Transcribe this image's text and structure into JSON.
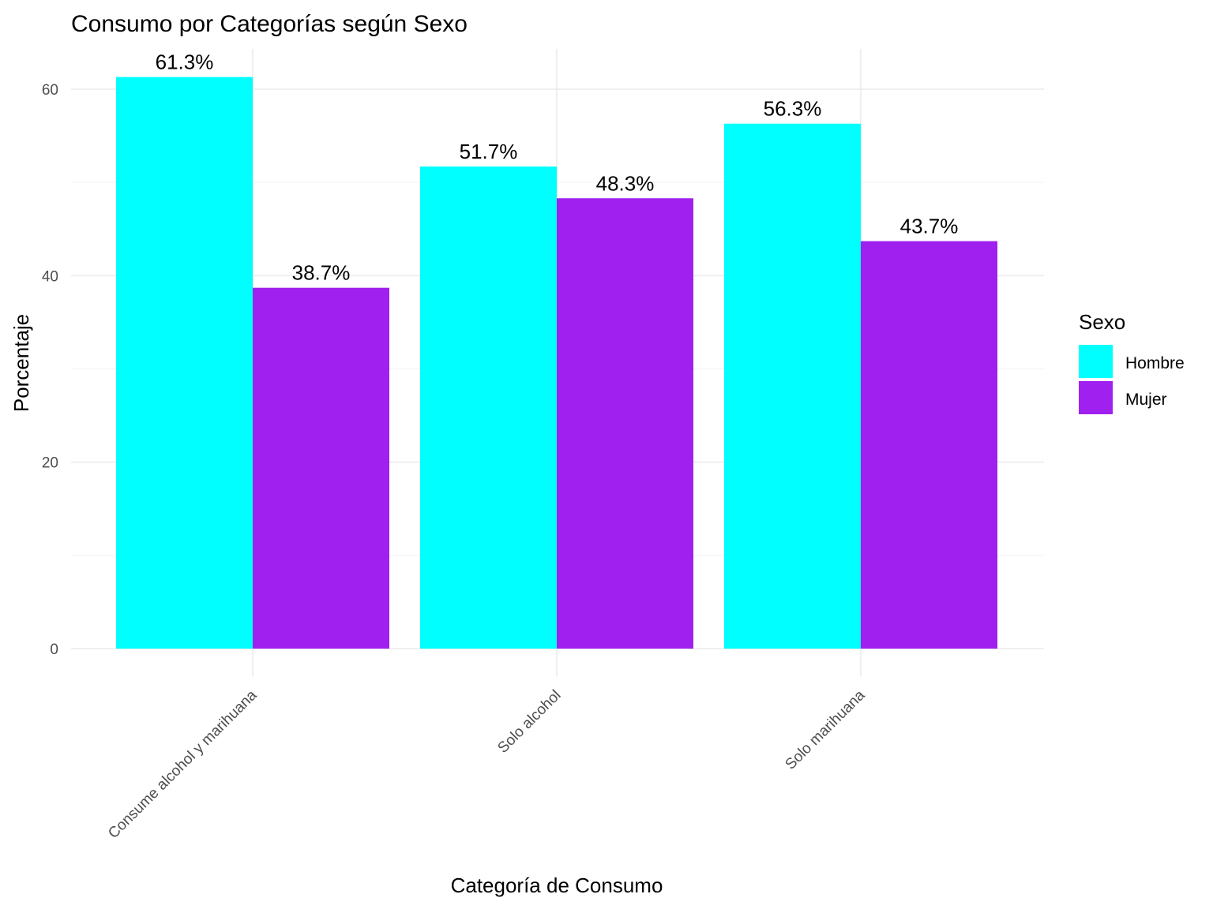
{
  "chart_data": {
    "type": "bar",
    "title": "Consumo por Categorías según Sexo",
    "xlabel": "Categoría de Consumo",
    "ylabel": "Porcentaje",
    "categories": [
      "Consume alcohol y marihuana",
      "Solo alcohol",
      "Solo marihuana"
    ],
    "series": [
      {
        "name": "Hombre",
        "color": "#00FFFF",
        "values": [
          61.3,
          51.7,
          56.3
        ],
        "labels": [
          "61.3%",
          "51.7%",
          "56.3%"
        ]
      },
      {
        "name": "Mujer",
        "color": "#A020F0",
        "values": [
          38.7,
          48.3,
          43.7
        ],
        "labels": [
          "38.7%",
          "48.3%",
          "43.7%"
        ]
      }
    ],
    "yticks": [
      0,
      20,
      40,
      60
    ],
    "ytick_labels": [
      "0",
      "20",
      "40",
      "60"
    ],
    "ylim": [
      0,
      64.4
    ],
    "grid": true,
    "legend": {
      "title": "Sexo",
      "position": "right"
    }
  }
}
